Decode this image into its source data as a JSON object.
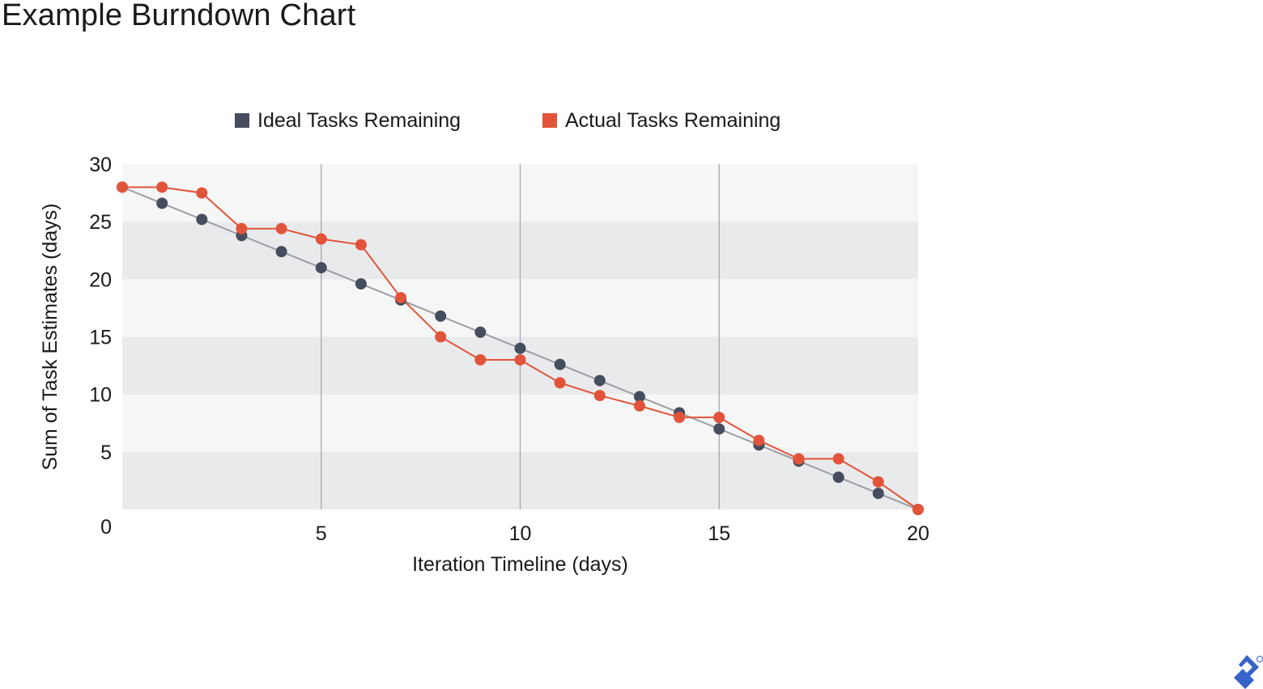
{
  "page": {
    "title": "Example Burndown Chart"
  },
  "chart_data": {
    "type": "line",
    "title": "Example Burndown Chart",
    "xlabel": "Iteration Timeline (days)",
    "ylabel": "Sum of Task Estimates (days)",
    "xlim": [
      0,
      20
    ],
    "ylim": [
      0,
      30
    ],
    "xticks": [
      5,
      10,
      15,
      20
    ],
    "xtick_labels": [
      "5",
      "10",
      "15",
      "20"
    ],
    "yticks": [
      0,
      5,
      10,
      15,
      20,
      25,
      30
    ],
    "ytick_labels": [
      "0",
      "5",
      "10",
      "15",
      "20",
      "25",
      "30"
    ],
    "vertical_gridlines_at": [
      5,
      10,
      15
    ],
    "horizontal_bands": true,
    "legend_position": "top",
    "x": [
      0,
      1,
      2,
      3,
      4,
      5,
      6,
      7,
      8,
      9,
      10,
      11,
      12,
      13,
      14,
      15,
      16,
      17,
      18,
      19,
      20
    ],
    "series": [
      {
        "name": "Ideal Tasks Remaining",
        "color": "#454d5e",
        "line_color": "#9a9ea6",
        "values": [
          28,
          26.6,
          25.2,
          23.8,
          22.4,
          21,
          19.6,
          18.2,
          16.8,
          15.4,
          14,
          12.6,
          11.2,
          9.8,
          8.4,
          7,
          5.6,
          4.2,
          2.8,
          1.4,
          0
        ]
      },
      {
        "name": "Actual Tasks Remaining",
        "color": "#e2543a",
        "line_color": "#e2543a",
        "values": [
          28,
          28,
          27.5,
          24.4,
          24.4,
          23.5,
          23,
          18.4,
          15,
          13,
          13,
          11,
          9.9,
          9,
          8,
          8,
          6,
          4.4,
          4.4,
          2.4,
          0
        ]
      }
    ]
  },
  "brand": {
    "logo_icon": "toptal-logo-icon",
    "logo_color": "#3863c9"
  }
}
